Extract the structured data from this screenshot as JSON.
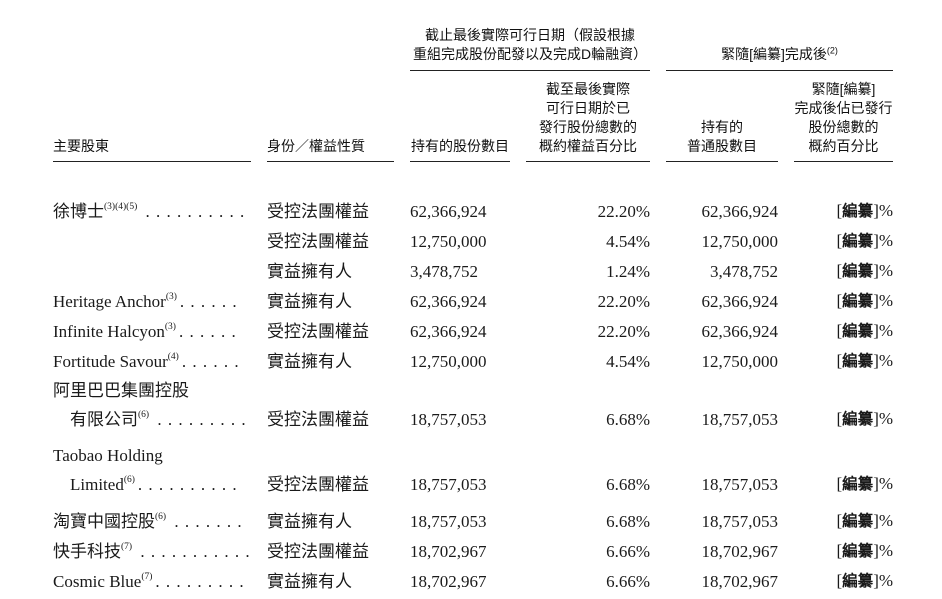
{
  "table": {
    "group_headers": [
      {
        "lines": [
          "截止最後實際可行日期（假設根據",
          "重組完成股份配發以及完成D輪融資）"
        ],
        "sup": ""
      },
      {
        "lines": [
          "緊隨[編纂]完成後"
        ],
        "sup": "(2)"
      }
    ],
    "columns": [
      {
        "lines": [
          "主要股東"
        ]
      },
      {
        "lines": [
          "身份／權益性質"
        ]
      },
      {
        "lines": [
          "持有的股份數目"
        ]
      },
      {
        "lines": [
          "截至最後實際",
          "可行日期於已",
          "發行股份總數的",
          "概約權益百分比"
        ]
      },
      {
        "lines": [
          "持有的",
          "普通股數目"
        ]
      },
      {
        "lines": [
          "緊隨[編纂]",
          "完成後佔已發行",
          "股份總數的",
          "概約百分比"
        ]
      }
    ],
    "rows": [
      {
        "name_lines": [
          {
            "text": "徐博士",
            "sup": "(3)(4)(5)",
            "dots": " . . . . . . . . . ."
          }
        ],
        "identity": "受控法團權益",
        "shares": "62,366,924",
        "pct": "22.20%",
        "ordinary": "62,366,924",
        "post": "[編纂]%"
      },
      {
        "name_lines": [],
        "identity": "受控法團權益",
        "shares": "12,750,000",
        "pct": "4.54%",
        "ordinary": "12,750,000",
        "post": "[編纂]%"
      },
      {
        "name_lines": [],
        "identity": "實益擁有人",
        "shares": "3,478,752",
        "pct": "1.24%",
        "ordinary": "3,478,752",
        "post": "[編纂]%"
      },
      {
        "name_lines": [
          {
            "text": "Heritage Anchor",
            "sup": "(3)",
            "dots": ". . . . . ."
          }
        ],
        "identity": "實益擁有人",
        "shares": "62,366,924",
        "pct": "22.20%",
        "ordinary": "62,366,924",
        "post": "[編纂]%"
      },
      {
        "name_lines": [
          {
            "text": "Infinite Halcyon",
            "sup": "(3)",
            "dots": ". . . . . ."
          }
        ],
        "identity": "受控法團權益",
        "shares": "62,366,924",
        "pct": "22.20%",
        "ordinary": "62,366,924",
        "post": "[編纂]%"
      },
      {
        "name_lines": [
          {
            "text": "Fortitude Savour",
            "sup": "(4)",
            "dots": ". . . . . ."
          }
        ],
        "identity": "實益擁有人",
        "shares": "12,750,000",
        "pct": "4.54%",
        "ordinary": "12,750,000",
        "post": "[編纂]%"
      },
      {
        "name_lines": [
          {
            "text": "阿里巴巴集團控股",
            "sup": "",
            "dots": ""
          },
          {
            "text": "有限公司",
            "sup": "(6)",
            "dots": " . . . . . . . . .",
            "indent": true
          }
        ],
        "identity": "受控法團權益",
        "shares": "18,757,053",
        "pct": "6.68%",
        "ordinary": "18,757,053",
        "post": "[編纂]%"
      },
      {
        "name_lines": [
          {
            "text": "Taobao Holding",
            "sup": "",
            "dots": ""
          },
          {
            "text": "Limited",
            "sup": "(6)",
            "dots": ". . . . . . . . . .",
            "indent": true
          }
        ],
        "identity": "受控法團權益",
        "shares": "18,757,053",
        "pct": "6.68%",
        "ordinary": "18,757,053",
        "post": "[編纂]%"
      },
      {
        "name_lines": [
          {
            "text": "淘寶中國控股",
            "sup": "(6)",
            "dots": " . . . . . . ."
          }
        ],
        "identity": "實益擁有人",
        "shares": "18,757,053",
        "pct": "6.68%",
        "ordinary": "18,757,053",
        "post": "[編纂]%"
      },
      {
        "name_lines": [
          {
            "text": "快手科技",
            "sup": "(7)",
            "dots": " . . . . . . . . . . ."
          }
        ],
        "identity": "受控法團權益",
        "shares": "18,702,967",
        "pct": "6.66%",
        "ordinary": "18,702,967",
        "post": "[編纂]%"
      },
      {
        "name_lines": [
          {
            "text": "Cosmic Blue",
            "sup": "(7)",
            "dots": ". . . . . . . . ."
          }
        ],
        "identity": "實益擁有人",
        "shares": "18,702,967",
        "pct": "6.66%",
        "ordinary": "18,702,967",
        "post": "[編纂]%"
      }
    ]
  }
}
